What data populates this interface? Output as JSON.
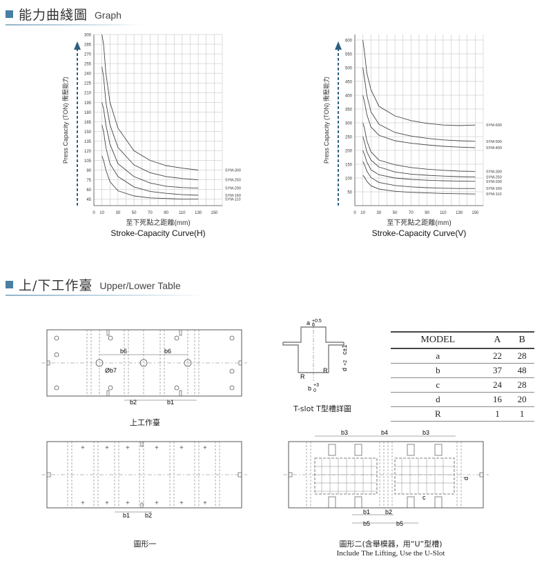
{
  "sections": {
    "graph": {
      "title_zh": "能力曲綫圖",
      "title_en": "Graph"
    },
    "table": {
      "title_zh": "上/下工作臺",
      "title_en": "Upper/Lower Table"
    }
  },
  "chart_data": [
    {
      "type": "line",
      "title": "Stroke-Capacity Curve(H)",
      "xlabel": "至下死點之距離(mm)",
      "ylabel": "Press Capacity (TON) 衝壓能力",
      "x_ticks": [
        0,
        10,
        30,
        50,
        70,
        90,
        110,
        130,
        150
      ],
      "y_ticks": [
        45,
        60,
        75,
        90,
        105,
        120,
        135,
        150,
        165,
        180,
        195,
        210,
        225,
        240,
        255,
        270,
        285,
        300
      ],
      "xlim": [
        0,
        160
      ],
      "ylim": [
        35,
        300
      ],
      "series": [
        {
          "name": "SYM-300",
          "x": [
            10,
            12,
            15,
            20,
            30,
            50,
            70,
            90,
            110,
            130
          ],
          "y": [
            300,
            285,
            240,
            195,
            155,
            120,
            105,
            97,
            93,
            90
          ]
        },
        {
          "name": "SYM-250",
          "x": [
            10,
            12,
            15,
            20,
            30,
            50,
            70,
            90,
            110,
            130
          ],
          "y": [
            250,
            235,
            195,
            160,
            125,
            98,
            86,
            80,
            77,
            75
          ]
        },
        {
          "name": "SYM-200",
          "x": [
            10,
            12,
            15,
            20,
            30,
            50,
            70,
            90,
            110,
            130
          ],
          "y": [
            195,
            185,
            160,
            130,
            100,
            80,
            70,
            65,
            63,
            62
          ]
        },
        {
          "name": "SYM-160",
          "x": [
            10,
            12,
            15,
            20,
            30,
            50,
            70,
            90,
            110,
            130
          ],
          "y": [
            160,
            150,
            125,
            100,
            80,
            64,
            57,
            54,
            52,
            51
          ]
        },
        {
          "name": "SYM-110",
          "x": [
            10,
            12,
            15,
            20,
            30,
            50,
            70,
            90,
            110,
            130
          ],
          "y": [
            112,
            105,
            90,
            72,
            58,
            50,
            47,
            46,
            45,
            45
          ]
        }
      ]
    },
    {
      "type": "line",
      "title": "Stroke-Capacity Curve(V)",
      "xlabel": "至下死點之距離(mm)",
      "ylabel": "Press Capacity (TON) 衝壓能力",
      "x_ticks": [
        0,
        10,
        30,
        50,
        70,
        90,
        110,
        130,
        150
      ],
      "y_ticks": [
        50,
        100,
        150,
        200,
        250,
        300,
        350,
        400,
        450,
        500,
        550,
        600
      ],
      "xlim": [
        0,
        160
      ],
      "ylim": [
        0,
        620
      ],
      "series": [
        {
          "name": "SYM-600",
          "x": [
            10,
            12,
            15,
            20,
            30,
            50,
            70,
            90,
            110,
            130,
            150
          ],
          "y": [
            600,
            555,
            480,
            420,
            360,
            325,
            308,
            298,
            292,
            290,
            292
          ]
        },
        {
          "name": "SYM-500",
          "x": [
            10,
            12,
            15,
            20,
            30,
            50,
            70,
            90,
            110,
            130,
            150
          ],
          "y": [
            500,
            460,
            400,
            340,
            295,
            265,
            252,
            244,
            238,
            235,
            233
          ]
        },
        {
          "name": "SYM-400",
          "x": [
            10,
            12,
            15,
            20,
            30,
            50,
            70,
            90,
            110,
            130,
            150
          ],
          "y": [
            400,
            375,
            330,
            285,
            255,
            235,
            226,
            220,
            215,
            212,
            210
          ]
        },
        {
          "name": "SYM-300",
          "x": [
            10,
            12,
            15,
            20,
            30,
            50,
            70,
            90,
            110,
            130,
            150
          ],
          "y": [
            300,
            280,
            235,
            195,
            165,
            148,
            138,
            132,
            128,
            125,
            124
          ]
        },
        {
          "name": "SYM-250",
          "x": [
            10,
            12,
            15,
            20,
            30,
            50,
            70,
            90,
            110,
            130,
            150
          ],
          "y": [
            250,
            230,
            195,
            165,
            140,
            122,
            114,
            110,
            107,
            105,
            104
          ]
        },
        {
          "name": "SYM-200",
          "x": [
            10,
            12,
            15,
            20,
            30,
            50,
            70,
            90,
            110,
            130,
            150
          ],
          "y": [
            200,
            185,
            158,
            130,
            112,
            100,
            95,
            92,
            90,
            89,
            88
          ]
        },
        {
          "name": "SYM-160",
          "x": [
            10,
            12,
            15,
            20,
            30,
            50,
            70,
            90,
            110,
            130,
            150
          ],
          "y": [
            160,
            148,
            125,
            102,
            84,
            73,
            68,
            65,
            63,
            62,
            62
          ]
        },
        {
          "name": "SYM-110",
          "x": [
            10,
            12,
            15,
            20,
            30,
            50,
            70,
            90,
            110,
            130,
            150
          ],
          "y": [
            110,
            103,
            88,
            72,
            60,
            52,
            48,
            46,
            44,
            43,
            42
          ]
        }
      ]
    }
  ],
  "diagrams": {
    "upper_table": {
      "caption": "上工作臺",
      "labels": [
        "b6",
        "b6",
        "Øb7",
        "b2",
        "b1"
      ]
    },
    "tslot": {
      "caption": "T-slot  T型槽詳圖",
      "label_a": "a",
      "tol_a_up": "+0.5",
      "tol_a_dn": "0",
      "label_b": "b",
      "tol_b_up": "+3",
      "tol_b_dn": "0",
      "label_c": "c±1",
      "label_d": "d",
      "tol_d_up": "+2",
      "tol_d_dn": "0",
      "label_r": "R"
    },
    "lower_table_1": {
      "caption": "圖形一",
      "labels": [
        "b1",
        "b2"
      ]
    },
    "lower_table_2": {
      "caption_zh": "圖形二(含舉模器，用“U”型槽)",
      "caption_en": "Include The Lifting, Use the U-Slot",
      "labels": [
        "b3",
        "b4",
        "b3",
        "d",
        "c",
        "b1",
        "b2",
        "b5",
        "b5"
      ]
    }
  },
  "spec_table": {
    "headers": [
      "MODEL",
      "A",
      "B"
    ],
    "rows": [
      [
        "a",
        "22",
        "28"
      ],
      [
        "b",
        "37",
        "48"
      ],
      [
        "c",
        "24",
        "28"
      ],
      [
        "d",
        "16",
        "20"
      ],
      [
        "R",
        "1",
        "1"
      ]
    ]
  }
}
